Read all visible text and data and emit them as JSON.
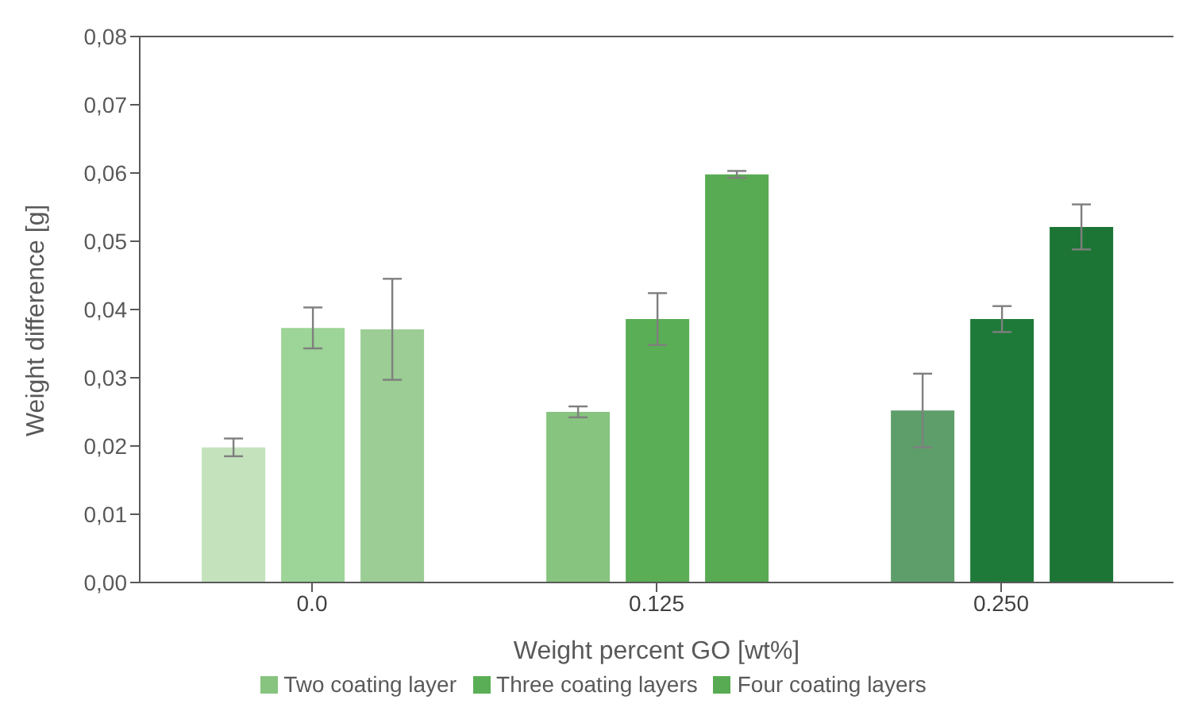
{
  "chart_data": {
    "type": "bar",
    "xlabel": "Weight percent GO [wt%]",
    "ylabel": "Weight difference [g]",
    "categories": [
      "0.0",
      "0.125",
      "0.250"
    ],
    "series": [
      {
        "name": "Two coating layer",
        "color": "#86c47f",
        "colors": [
          "#c4e3bd",
          "#86c47f",
          "#5e9e6a"
        ],
        "values": [
          0.0198,
          0.025,
          0.0252
        ],
        "errors": [
          0.0013,
          0.0008,
          0.0054
        ]
      },
      {
        "name": "Three coating layers",
        "color": "#5aae55",
        "colors": [
          "#9dd497",
          "#5aae55",
          "#1e7a38"
        ],
        "values": [
          0.0373,
          0.0386,
          0.0386
        ],
        "errors": [
          0.003,
          0.0038,
          0.0019
        ]
      },
      {
        "name": "Four coating layers",
        "color": "#58ab52",
        "colors": [
          "#9bcd95",
          "#58ab52",
          "#1c7535"
        ],
        "values": [
          0.0371,
          0.0598,
          0.0521
        ],
        "errors": [
          0.0074,
          0.0005,
          0.0033
        ]
      }
    ],
    "ylim": [
      0,
      0.08
    ],
    "yticks": [
      {
        "value": 0,
        "label": "0,00"
      },
      {
        "value": 0.01,
        "label": "0,01"
      },
      {
        "value": 0.02,
        "label": "0,02"
      },
      {
        "value": 0.03,
        "label": "0,03"
      },
      {
        "value": 0.04,
        "label": "0,04"
      },
      {
        "value": 0.05,
        "label": "0,05"
      },
      {
        "value": 0.06,
        "label": "0,06"
      },
      {
        "value": 0.07,
        "label": "0,07"
      },
      {
        "value": 0.08,
        "label": "0,08"
      }
    ],
    "grid": false,
    "legend": "bottom"
  }
}
